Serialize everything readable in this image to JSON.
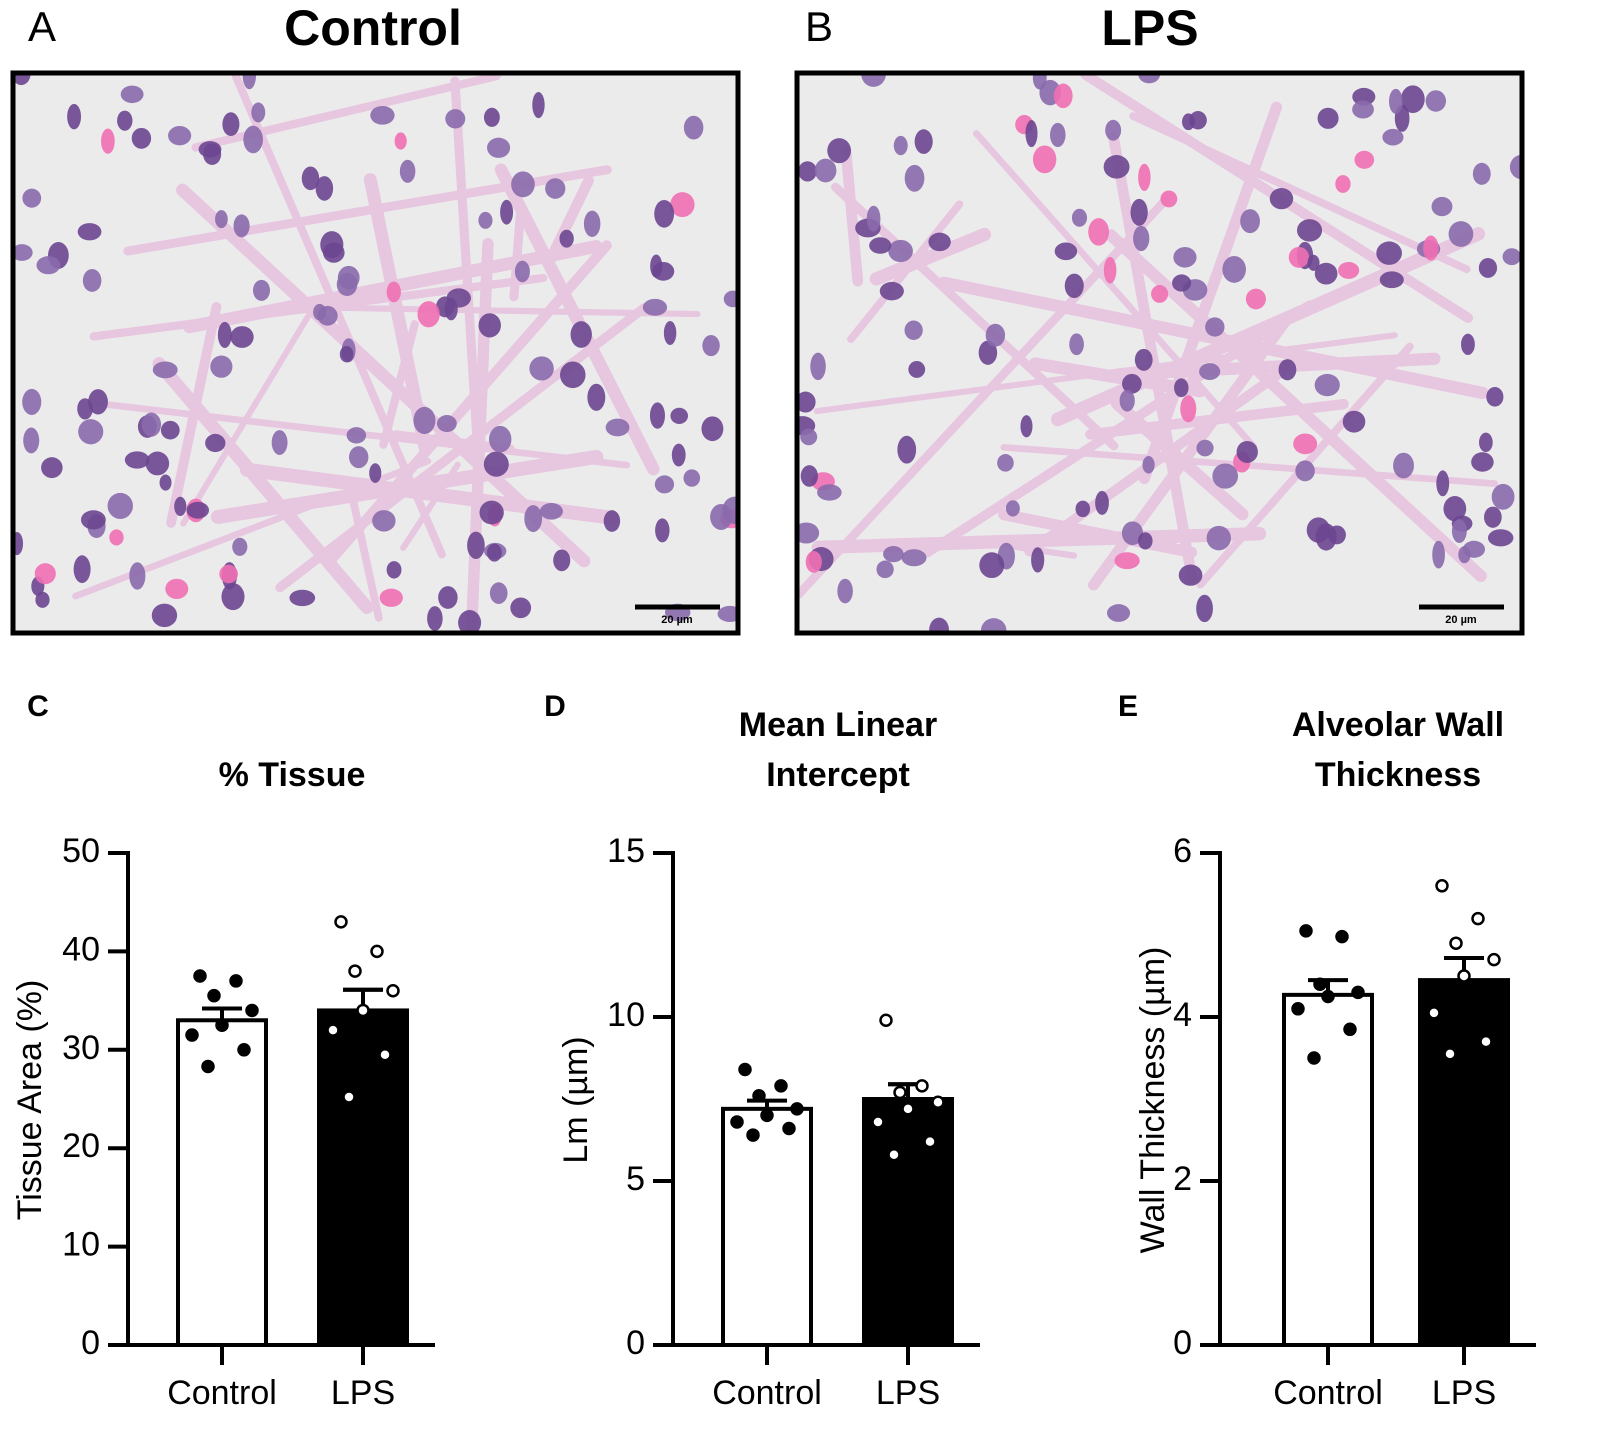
{
  "images": [
    {
      "letter": "A",
      "title": "Control",
      "scale_bar": "20 µm"
    },
    {
      "letter": "B",
      "title": "LPS",
      "scale_bar": "20 µm"
    }
  ],
  "chart_data": [
    {
      "type": "bar",
      "letter": "C",
      "title": [
        "% Tissue"
      ],
      "ylabel": "Tissue Area (%)",
      "categories": [
        "Control",
        "LPS"
      ],
      "values": [
        33,
        34
      ],
      "errors": [
        1.2,
        2.1
      ],
      "points": [
        [
          37.5,
          37,
          35.5,
          34,
          32.5,
          31.5,
          30,
          28.3
        ],
        [
          43,
          40,
          38,
          36,
          34,
          32,
          29.5,
          25.2
        ]
      ],
      "bar_colors": [
        "#ffffff",
        "#000000"
      ],
      "point_fills": [
        "#000000",
        "#ffffff"
      ],
      "ylim": [
        0,
        50
      ],
      "yticks": [
        0,
        10,
        20,
        30,
        40,
        50
      ]
    },
    {
      "type": "bar",
      "letter": "D",
      "title": [
        "Mean Linear",
        "Intercept"
      ],
      "ylabel": "Lm (µm)",
      "categories": [
        "Control",
        "LPS"
      ],
      "values": [
        7.2,
        7.5
      ],
      "errors": [
        0.25,
        0.45
      ],
      "points": [
        [
          8.4,
          7.9,
          7.6,
          7.2,
          7.0,
          6.8,
          6.6,
          6.4
        ],
        [
          9.9,
          7.9,
          7.7,
          7.4,
          7.2,
          6.8,
          6.2,
          5.8
        ]
      ],
      "bar_colors": [
        "#ffffff",
        "#000000"
      ],
      "point_fills": [
        "#000000",
        "#ffffff"
      ],
      "ylim": [
        0,
        15
      ],
      "yticks": [
        0,
        5,
        10,
        15
      ]
    },
    {
      "type": "bar",
      "letter": "E",
      "title": [
        "Alveolar Wall",
        "Thickness"
      ],
      "ylabel": "Wall Thickness (µm)",
      "categories": [
        "Control",
        "LPS"
      ],
      "values": [
        4.27,
        4.45
      ],
      "errors": [
        0.18,
        0.27
      ],
      "points": [
        [
          5.05,
          4.98,
          4.4,
          4.3,
          4.25,
          4.1,
          3.85,
          3.5
        ],
        [
          5.6,
          5.2,
          4.9,
          4.7,
          4.5,
          4.05,
          3.7,
          3.55
        ]
      ],
      "bar_colors": [
        "#ffffff",
        "#000000"
      ],
      "point_fills": [
        "#000000",
        "#ffffff"
      ],
      "ylim": [
        0,
        6
      ],
      "yticks": [
        0,
        2,
        4,
        6
      ]
    }
  ]
}
